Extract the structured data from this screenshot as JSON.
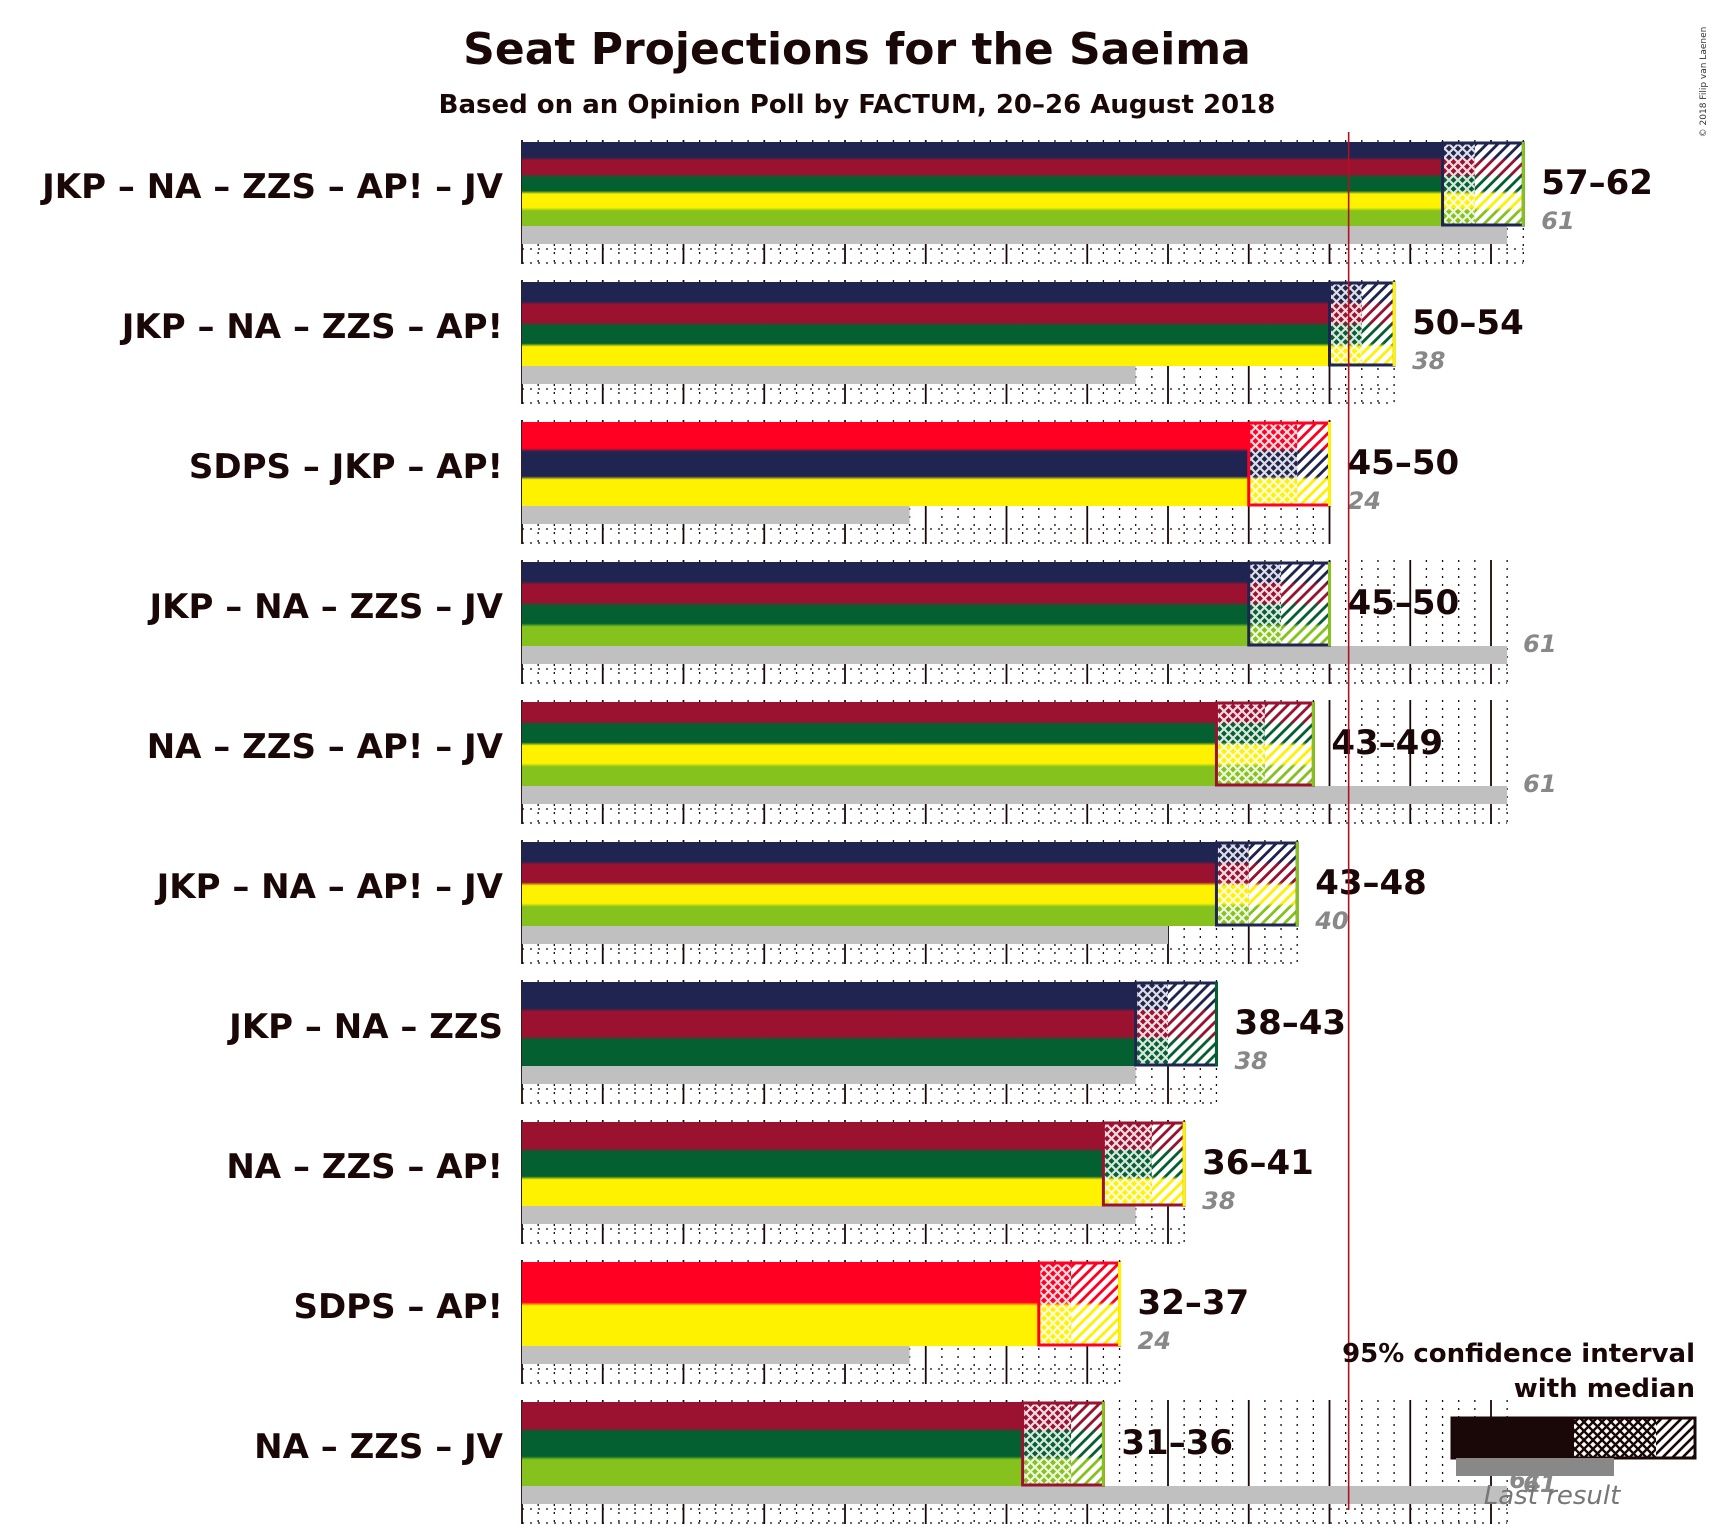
{
  "chart_data": {
    "type": "bar",
    "title": "Seat Projections for the Saeima",
    "subtitle": "Based on an Opinion Poll by FACTUM, 20–26 August 2018",
    "copyright": "© 2018 Filip van Laenen",
    "majority": 51,
    "xlim": [
      0,
      62
    ],
    "coalitions": [
      {
        "label": "JKP – NA – ZZS – AP! – JV",
        "range": "57–62",
        "low": 57,
        "median": 59,
        "high": 62,
        "last_result": 61,
        "last_label": "61",
        "parties": [
          "JKP",
          "NA",
          "ZZS",
          "AP!",
          "JV"
        ]
      },
      {
        "label": "JKP – NA – ZZS – AP!",
        "range": "50–54",
        "low": 50,
        "median": 52,
        "high": 54,
        "last_result": 38,
        "last_label": "38",
        "parties": [
          "JKP",
          "NA",
          "ZZS",
          "AP!"
        ]
      },
      {
        "label": "SDPS – JKP – AP!",
        "range": "45–50",
        "low": 45,
        "median": 48,
        "high": 50,
        "last_result": 24,
        "last_label": "24",
        "parties": [
          "SDPS",
          "JKP",
          "AP!"
        ]
      },
      {
        "label": "JKP – NA – ZZS – JV",
        "range": "45–50",
        "low": 45,
        "median": 47,
        "high": 50,
        "last_result": 61,
        "last_label": "61",
        "parties": [
          "JKP",
          "NA",
          "ZZS",
          "JV"
        ]
      },
      {
        "label": "NA – ZZS – AP! – JV",
        "range": "43–49",
        "low": 43,
        "median": 46,
        "high": 49,
        "last_result": 61,
        "last_label": "61",
        "parties": [
          "NA",
          "ZZS",
          "AP!",
          "JV"
        ]
      },
      {
        "label": "JKP – NA – AP! – JV",
        "range": "43–48",
        "low": 43,
        "median": 45,
        "high": 48,
        "last_result": 40,
        "last_label": "40",
        "parties": [
          "JKP",
          "NA",
          "AP!",
          "JV"
        ]
      },
      {
        "label": "JKP – NA – ZZS",
        "range": "38–43",
        "low": 38,
        "median": 40,
        "high": 43,
        "last_result": 38,
        "last_label": "38",
        "parties": [
          "JKP",
          "NA",
          "ZZS"
        ]
      },
      {
        "label": "NA – ZZS – AP!",
        "range": "36–41",
        "low": 36,
        "median": 39,
        "high": 41,
        "last_result": 38,
        "last_label": "38",
        "parties": [
          "NA",
          "ZZS",
          "AP!"
        ]
      },
      {
        "label": "SDPS – AP!",
        "range": "32–37",
        "low": 32,
        "median": 34,
        "high": 37,
        "last_result": 24,
        "last_label": "24",
        "parties": [
          "SDPS",
          "AP!"
        ]
      },
      {
        "label": "NA – ZZS – JV",
        "range": "31–36",
        "low": 31,
        "median": 34,
        "high": 36,
        "last_result": 61,
        "last_label": "61",
        "parties": [
          "NA",
          "ZZS",
          "JV"
        ]
      }
    ],
    "party_colors": {
      "JKP": "#1f2550",
      "NA": "#9b1230",
      "ZZS": "#046030",
      "AP!": "#fff200",
      "JV": "#85c21e",
      "SDPS": "#ff0022"
    },
    "legend": {
      "line1": "95% confidence interval",
      "line2": "with median",
      "last": "Last result",
      "last_example": "61"
    }
  }
}
